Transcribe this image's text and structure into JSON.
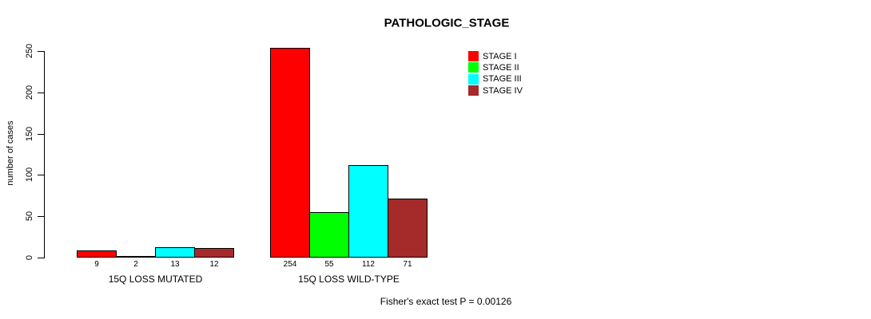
{
  "page": {
    "background": "#ffffff",
    "text_color": "#000000"
  },
  "chart_data": {
    "type": "bar",
    "title": "PATHOLOGIC_STAGE",
    "xlabel": "",
    "ylabel": "number of cases",
    "ylim": [
      0,
      250
    ],
    "yticks": [
      0,
      50,
      100,
      150,
      200,
      250
    ],
    "grid": false,
    "legend_position": "top-right",
    "bar_value_labels_shown": true,
    "categories": [
      "15Q LOSS MUTATED",
      "15Q LOSS WILD-TYPE"
    ],
    "series": [
      {
        "name": "STAGE I",
        "color": "#FF0000",
        "values": [
          9,
          254
        ]
      },
      {
        "name": "STAGE II",
        "color": "#00FF00",
        "values": [
          2,
          55
        ]
      },
      {
        "name": "STAGE III",
        "color": "#00FFFF",
        "values": [
          13,
          112
        ]
      },
      {
        "name": "STAGE IV",
        "color": "#A52A2A",
        "values": [
          12,
          71
        ]
      }
    ],
    "annotation": "Fisher's exact test P = 0.00126"
  }
}
